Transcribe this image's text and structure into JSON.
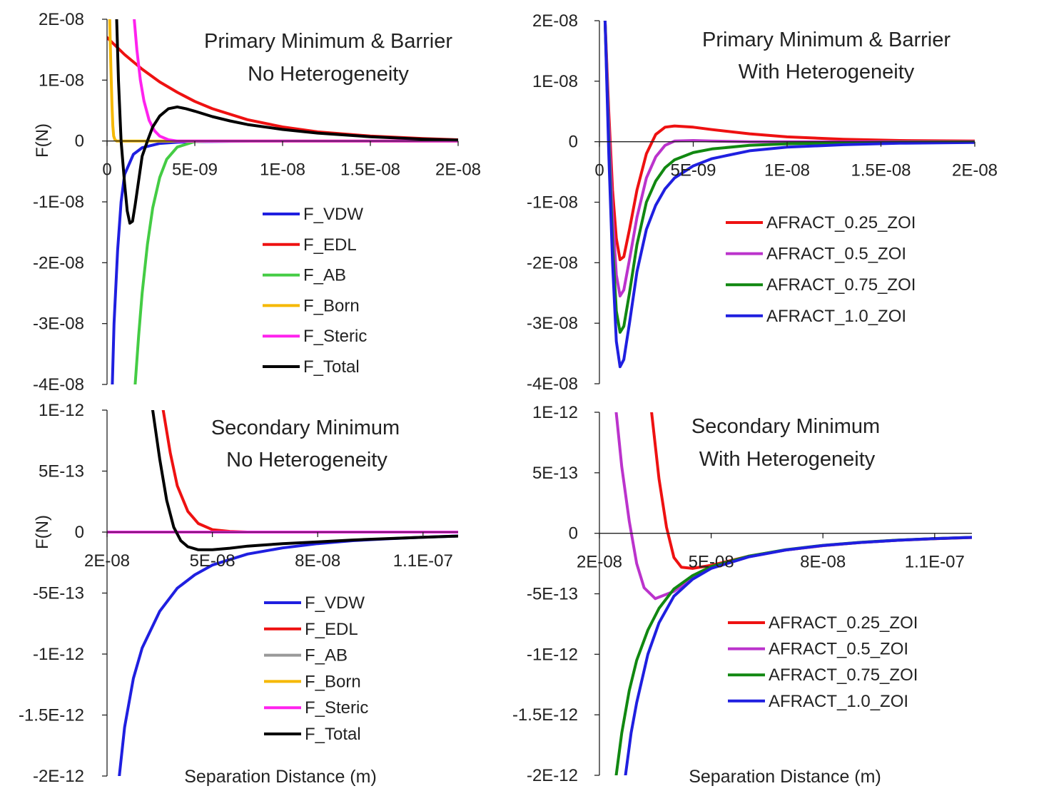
{
  "chart_data": [
    {
      "type": "line",
      "title": "Primary Minimum & Barrier",
      "subtitle": "No Heterogeneity",
      "ylabel": "F(N)",
      "xlabel": "",
      "xlim": [
        0,
        2e-08
      ],
      "ylim": [
        -4e-08,
        2e-08
      ],
      "x_ticks": [
        0,
        5e-09,
        1e-08,
        1.5e-08,
        2e-08
      ],
      "x_tick_labels": [
        "0",
        "5E-09",
        "1E-08",
        "1.5E-08",
        "2E-08"
      ],
      "y_ticks": [
        2e-08,
        1e-08,
        0,
        -1e-08,
        -2e-08,
        -3e-08,
        -4e-08
      ],
      "y_tick_labels": [
        "2E-08",
        "1E-08",
        "0",
        "-1E-08",
        "-2E-08",
        "-3E-08",
        "-4E-08"
      ],
      "legend": "center-right",
      "grid": false,
      "series": [
        {
          "name": "F_VDW",
          "color": "#1f1fe0",
          "x": [
            3e-10,
            4e-10,
            6e-10,
            8e-10,
            1e-09,
            1.5e-09,
            2e-09,
            3e-09,
            4e-09,
            5e-09,
            7e-09,
            1e-08,
            2e-08
          ],
          "values": [
            -4e-08,
            -3e-08,
            -1.8e-08,
            -1e-08,
            -5.5e-09,
            -2.2e-09,
            -1.1e-09,
            -4e-10,
            -2e-10,
            -1e-10,
            -5e-11,
            -2e-11,
            0
          ]
        },
        {
          "name": "F_EDL",
          "color": "#ee1111",
          "x": [
            0,
            1e-09,
            2e-09,
            3e-09,
            4e-09,
            5e-09,
            6e-09,
            8e-09,
            1e-08,
            1.2e-08,
            1.5e-08,
            1.8e-08,
            2e-08
          ],
          "values": [
            1.7e-08,
            1.42e-08,
            1.18e-08,
            9.7e-09,
            8e-09,
            6.5e-09,
            5.3e-09,
            3.5e-09,
            2.3e-09,
            1.5e-09,
            8e-10,
            4e-10,
            2e-10
          ]
        },
        {
          "name": "F_AB",
          "color": "#44cc44",
          "x": [
            1.6e-09,
            1.8e-09,
            2e-09,
            2.3e-09,
            2.6e-09,
            3e-09,
            3.4e-09,
            4e-09,
            5e-09,
            6e-09,
            2e-08
          ],
          "values": [
            -4e-08,
            -3.2e-08,
            -2.5e-08,
            -1.7e-08,
            -1.1e-08,
            -6e-09,
            -3e-09,
            -1e-09,
            -1e-10,
            0,
            0
          ]
        },
        {
          "name": "F_Born",
          "color": "#f5b800",
          "x": [
            1.5e-10,
            2.2e-10,
            2.8e-10,
            3.3e-10,
            3.8e-10,
            4.5e-10,
            5.5e-10,
            7e-10,
            1e-09,
            2e-08
          ],
          "values": [
            2e-08,
            1.2e-08,
            6e-09,
            2.5e-09,
            8e-10,
            2e-10,
            0,
            0,
            0,
            0
          ]
        },
        {
          "name": "F_Steric",
          "color": "#ff22ee",
          "x": [
            1.55e-09,
            1.7e-09,
            1.9e-09,
            2.1e-09,
            2.4e-09,
            2.7e-09,
            3e-09,
            3.5e-09,
            4e-09,
            5e-09,
            2e-08
          ],
          "values": [
            2e-08,
            1.5e-08,
            1e-08,
            6.6e-09,
            3.4e-09,
            1.7e-09,
            8e-10,
            2e-10,
            0,
            0,
            0
          ]
        },
        {
          "name": "F_Total",
          "color": "#000000",
          "x": [
            5.5e-10,
            6.5e-10,
            8e-10,
            1e-09,
            1.15e-09,
            1.3e-09,
            1.45e-09,
            1.6e-09,
            1.8e-09,
            2e-09,
            2.3e-09,
            2.6e-09,
            3e-09,
            3.5e-09,
            4e-09,
            4.5e-09,
            5e-09,
            6e-09,
            7e-09,
            8e-09,
            1e-08,
            1.2e-08,
            1.5e-08,
            1.8e-08,
            2e-08
          ],
          "values": [
            2e-08,
            1e-08,
            0,
            -7e-09,
            -1.15e-08,
            -1.35e-08,
            -1.32e-08,
            -1.05e-08,
            -6.5e-09,
            -2.5e-09,
            0,
            2.3e-09,
            4.1e-09,
            5.3e-09,
            5.6e-09,
            5.3e-09,
            4.9e-09,
            4e-09,
            3.3e-09,
            2.7e-09,
            1.9e-09,
            1.3e-09,
            7e-10,
            3e-10,
            1.5e-10
          ]
        }
      ]
    },
    {
      "type": "line",
      "title": "Primary Minimum & Barrier",
      "subtitle": "With Heterogeneity",
      "ylabel": "",
      "xlabel": "",
      "xlim": [
        0,
        2e-08
      ],
      "ylim": [
        -4e-08,
        2e-08
      ],
      "x_ticks": [
        0,
        5e-09,
        1e-08,
        1.5e-08,
        2e-08
      ],
      "x_tick_labels": [
        "0",
        "5E-09",
        "1E-08",
        "1.5E-08",
        "2E-08"
      ],
      "y_ticks": [
        2e-08,
        1e-08,
        0,
        -1e-08,
        -2e-08,
        -3e-08,
        -4e-08
      ],
      "y_tick_labels": [
        "2E-08",
        "1E-08",
        "0",
        "-1E-08",
        "-2E-08",
        "-3E-08",
        "-4E-08"
      ],
      "legend": "center-right",
      "grid": false,
      "series": [
        {
          "name": "AFRACT_0.25_ZOI",
          "color": "#ee1111",
          "x": [
            3e-10,
            5e-10,
            7e-10,
            9e-10,
            1.1e-09,
            1.3e-09,
            1.6e-09,
            2e-09,
            2.5e-09,
            3e-09,
            3.5e-09,
            4e-09,
            5e-09,
            6e-09,
            8e-09,
            1e-08,
            1.3e-08,
            1.6e-08,
            2e-08
          ],
          "values": [
            2e-08,
            5e-09,
            -8e-09,
            -1.6e-08,
            -1.95e-08,
            -1.9e-08,
            -1.45e-08,
            -8e-09,
            -2e-09,
            1.2e-09,
            2.4e-09,
            2.6e-09,
            2.4e-09,
            2e-09,
            1.3e-09,
            8e-10,
            4e-10,
            2e-10,
            1e-10
          ]
        },
        {
          "name": "AFRACT_0.5_ZOI",
          "color": "#bb33cc",
          "x": [
            3e-10,
            5e-10,
            7e-10,
            9e-10,
            1.1e-09,
            1.3e-09,
            1.6e-09,
            2e-09,
            2.5e-09,
            3e-09,
            3.5e-09,
            4e-09,
            5e-09,
            6e-09,
            8e-09,
            1e-08,
            2e-08
          ],
          "values": [
            2e-08,
            3e-09,
            -1.2e-08,
            -2.2e-08,
            -2.55e-08,
            -2.45e-08,
            -1.95e-08,
            -1.25e-08,
            -6e-09,
            -2.5e-09,
            -6e-10,
            1e-10,
            2e-10,
            1e-10,
            0,
            0,
            0
          ]
        },
        {
          "name": "AFRACT_0.75_ZOI",
          "color": "#118811",
          "x": [
            3e-10,
            5e-10,
            7e-10,
            9e-10,
            1.1e-09,
            1.3e-09,
            1.6e-09,
            2e-09,
            2.5e-09,
            3e-09,
            3.5e-09,
            4e-09,
            5e-09,
            6e-09,
            8e-09,
            1e-08,
            1.3e-08,
            1.6e-08,
            2e-08
          ],
          "values": [
            2e-08,
            0,
            -1.7e-08,
            -2.8e-08,
            -3.15e-08,
            -3.05e-08,
            -2.5e-08,
            -1.7e-08,
            -1e-08,
            -6.5e-09,
            -4.3e-09,
            -3e-09,
            -1.8e-09,
            -1.2e-09,
            -6e-10,
            -3.5e-10,
            -1.8e-10,
            -1e-10,
            -5e-11
          ]
        },
        {
          "name": "AFRACT_1.0_ZOI",
          "color": "#1f1fe0",
          "x": [
            3e-10,
            5e-10,
            7e-10,
            9e-10,
            1.1e-09,
            1.3e-09,
            1.6e-09,
            2e-09,
            2.5e-09,
            3e-09,
            3.5e-09,
            4e-09,
            5e-09,
            6e-09,
            8e-09,
            1e-08,
            1.3e-08,
            1.6e-08,
            2e-08
          ],
          "values": [
            2e-08,
            -2e-09,
            -2e-08,
            -3.3e-08,
            -3.72e-08,
            -3.6e-08,
            -3e-08,
            -2.15e-08,
            -1.45e-08,
            -1.05e-08,
            -7.8e-09,
            -6e-09,
            -4e-09,
            -2.8e-09,
            -1.5e-09,
            -9e-10,
            -5e-10,
            -2.5e-10,
            -1.2e-10
          ]
        }
      ]
    },
    {
      "type": "line",
      "title": "Secondary Minimum",
      "subtitle": "No Heterogeneity",
      "ylabel": "F(N)",
      "xlabel": "Separation Distance (m)",
      "xlim": [
        2e-08,
        1.2e-07
      ],
      "ylim": [
        -2e-12,
        1e-12
      ],
      "x_ticks": [
        2e-08,
        5e-08,
        8e-08,
        1.1e-07
      ],
      "x_tick_labels": [
        "2E-08",
        "5E-08",
        "8E-08",
        "1.1E-07"
      ],
      "y_ticks": [
        1e-12,
        5e-13,
        0,
        -5e-13,
        -1e-12,
        -1.5e-12,
        -2e-12
      ],
      "y_tick_labels": [
        "1E-12",
        "5E-13",
        "0",
        "-5E-13",
        "-1E-12",
        "-1.5E-12",
        "-2E-12"
      ],
      "legend": "center-right",
      "grid": false,
      "series": [
        {
          "name": "F_VDW",
          "color": "#1f1fe0",
          "x": [
            2.35e-08,
            2.5e-08,
            2.75e-08,
            3e-08,
            3.5e-08,
            4e-08,
            4.5e-08,
            5e-08,
            6e-08,
            7e-08,
            8e-08,
            9e-08,
            1e-07,
            1.1e-07,
            1.2e-07
          ],
          "values": [
            -2e-12,
            -1.6e-12,
            -1.2e-12,
            -9.5e-13,
            -6.5e-13,
            -4.6e-13,
            -3.5e-13,
            -2.7e-13,
            -1.8e-13,
            -1.3e-13,
            -9.5e-14,
            -7e-14,
            -5.5e-14,
            -4.2e-14,
            -3.2e-14
          ]
        },
        {
          "name": "F_EDL",
          "color": "#ee1111",
          "x": [
            3.6e-08,
            3.8e-08,
            4e-08,
            4.3e-08,
            4.6e-08,
            5e-08,
            5.5e-08,
            6e-08,
            7e-08,
            8e-08,
            1e-07,
            1.2e-07
          ],
          "values": [
            1e-12,
            6.5e-13,
            3.8e-13,
            1.7e-13,
            7e-14,
            2e-14,
            5e-15,
            0,
            0,
            0,
            0,
            0
          ]
        },
        {
          "name": "F_AB",
          "color": "#999999",
          "x": [
            2e-08,
            1.2e-07
          ],
          "values": [
            0,
            0
          ]
        },
        {
          "name": "F_Born",
          "color": "#f5b800",
          "x": [
            2e-08,
            1.2e-07
          ],
          "values": [
            0,
            0
          ]
        },
        {
          "name": "F_Steric",
          "color": "#ff22ee",
          "x": [
            2e-08,
            1.2e-07
          ],
          "values": [
            0,
            0
          ]
        },
        {
          "name": "F_Total",
          "color": "#000000",
          "x": [
            3.3e-08,
            3.5e-08,
            3.7e-08,
            3.9e-08,
            4.1e-08,
            4.3e-08,
            4.6e-08,
            5e-08,
            5.5e-08,
            6e-08,
            7e-08,
            8e-08,
            9e-08,
            1e-07,
            1.1e-07,
            1.2e-07
          ],
          "values": [
            1e-12,
            6e-13,
            2.6e-13,
            4e-14,
            -7e-14,
            -1.2e-13,
            -1.45e-13,
            -1.45e-13,
            -1.32e-13,
            -1.15e-13,
            -9.5e-14,
            -8e-14,
            -6.5e-14,
            -5.3e-14,
            -4.2e-14,
            -3.3e-14
          ]
        }
      ]
    },
    {
      "type": "line",
      "title": "Secondary Minimum",
      "subtitle": "With Heterogeneity",
      "ylabel": "",
      "xlabel": "Separation Distance (m)",
      "xlim": [
        2e-08,
        1.2e-07
      ],
      "ylim": [
        -2e-12,
        1e-12
      ],
      "x_ticks": [
        2e-08,
        5e-08,
        8e-08,
        1.1e-07
      ],
      "x_tick_labels": [
        "2E-08",
        "5E-08",
        "8E-08",
        "1.1E-07"
      ],
      "y_ticks": [
        1e-12,
        5e-13,
        0,
        -5e-13,
        -1e-12,
        -1.5e-12,
        -2e-12
      ],
      "y_tick_labels": [
        "1E-12",
        "5E-13",
        "0",
        "-5E-13",
        "-1E-12",
        "-1.5E-12",
        "-2E-12"
      ],
      "legend": "center-right",
      "grid": false,
      "series": [
        {
          "name": "AFRACT_0.25_ZOI",
          "color": "#ee1111",
          "x": [
            3.4e-08,
            3.6e-08,
            3.8e-08,
            4e-08,
            4.2e-08,
            4.5e-08,
            5e-08,
            6e-08,
            7e-08,
            8e-08,
            9e-08,
            1e-07,
            1.1e-07,
            1.2e-07
          ],
          "values": [
            1e-12,
            4.5e-13,
            5e-14,
            -2e-13,
            -2.8e-13,
            -2.9e-13,
            -2.65e-13,
            -1.9e-13,
            -1.38e-13,
            -1.02e-13,
            -7.6e-14,
            -5.8e-14,
            -4.5e-14,
            -3.5e-14
          ]
        },
        {
          "name": "AFRACT_0.5_ZOI",
          "color": "#bb33cc",
          "x": [
            2.45e-08,
            2.6e-08,
            2.8e-08,
            3e-08,
            3.2e-08,
            3.5e-08,
            4e-08,
            4.5e-08,
            5e-08,
            6e-08,
            7e-08,
            8e-08,
            9e-08,
            1e-07,
            1.1e-07,
            1.2e-07
          ],
          "values": [
            1e-12,
            5.5e-13,
            1e-13,
            -2.5e-13,
            -4.5e-13,
            -5.4e-13,
            -4.8e-13,
            -3.7e-13,
            -2.9e-13,
            -1.95e-13,
            -1.38e-13,
            -1.02e-13,
            -7.6e-14,
            -5.8e-14,
            -4.5e-14,
            -3.5e-14
          ]
        },
        {
          "name": "AFRACT_0.75_ZOI",
          "color": "#118811",
          "x": [
            2.45e-08,
            2.6e-08,
            2.8e-08,
            3e-08,
            3.3e-08,
            3.6e-08,
            4e-08,
            4.5e-08,
            5e-08,
            6e-08,
            7e-08,
            8e-08,
            9e-08,
            1e-07,
            1.1e-07,
            1.2e-07
          ],
          "values": [
            -2e-12,
            -1.65e-12,
            -1.3e-12,
            -1.05e-12,
            -8e-13,
            -6.2e-13,
            -4.6e-13,
            -3.5e-13,
            -2.75e-13,
            -1.9e-13,
            -1.36e-13,
            -1e-13,
            -7.5e-14,
            -5.7e-14,
            -4.4e-14,
            -3.4e-14
          ]
        },
        {
          "name": "AFRACT_1.0_ZOI",
          "color": "#1f1fe0",
          "x": [
            2.7e-08,
            2.85e-08,
            3e-08,
            3.3e-08,
            3.6e-08,
            4e-08,
            4.5e-08,
            5e-08,
            6e-08,
            7e-08,
            8e-08,
            9e-08,
            1e-07,
            1.1e-07,
            1.2e-07
          ],
          "values": [
            -2e-12,
            -1.65e-12,
            -1.4e-12,
            -1e-12,
            -7.4e-13,
            -5.2e-13,
            -3.8e-13,
            -2.9e-13,
            -1.95e-13,
            -1.38e-13,
            -1.01e-13,
            -7.6e-14,
            -5.8e-14,
            -4.4e-14,
            -3.4e-14
          ]
        }
      ]
    }
  ]
}
